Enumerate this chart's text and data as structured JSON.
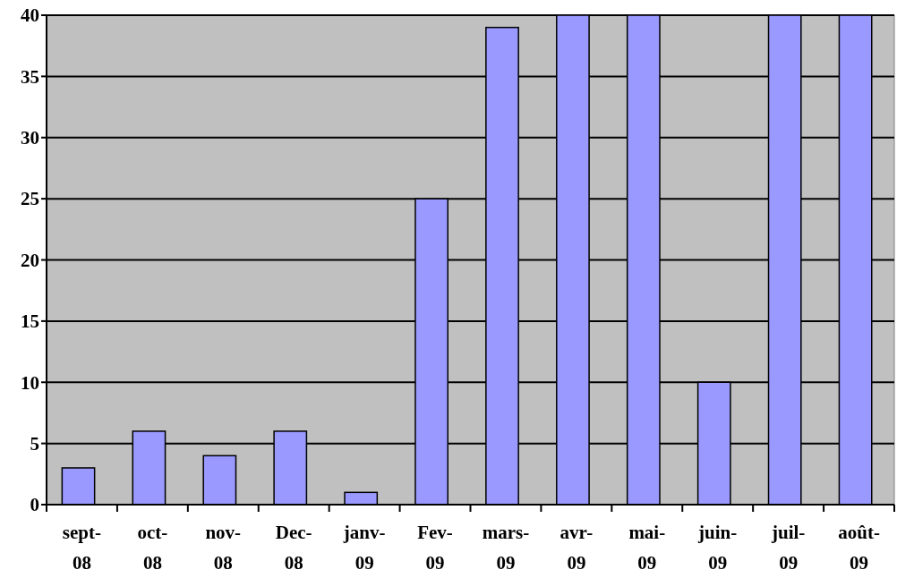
{
  "chart_data": {
    "type": "bar",
    "categories": [
      "sept-08",
      "oct-08",
      "nov-08",
      "Dec-08",
      "janv-09",
      "Fev-09",
      "mars-09",
      "avr-09",
      "mai-09",
      "juin-09",
      "juil-09",
      "août-09"
    ],
    "values": [
      3,
      6,
      4,
      6,
      1,
      25,
      39,
      40,
      40,
      10,
      40,
      40
    ],
    "color": "#9999ff",
    "ylim": [
      0,
      40
    ],
    "yticks": [
      0,
      5,
      10,
      15,
      20,
      25,
      30,
      35,
      40
    ],
    "grid": "y"
  }
}
